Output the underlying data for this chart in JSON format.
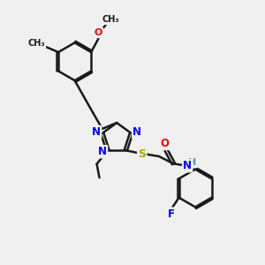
{
  "bg_color": "#f0f0f0",
  "bond_color": "#1a1a1a",
  "atom_colors": {
    "N": "#0000ee",
    "O": "#ee0000",
    "S": "#aaaa00",
    "F": "#0000ee",
    "H": "#4a9aaa",
    "C": "#1a1a1a"
  },
  "bond_lw": 1.8,
  "dbo": 0.06,
  "figsize": [
    3.0,
    3.0
  ],
  "dpi": 100,
  "xlim": [
    0,
    10
  ],
  "ylim": [
    0,
    10
  ]
}
